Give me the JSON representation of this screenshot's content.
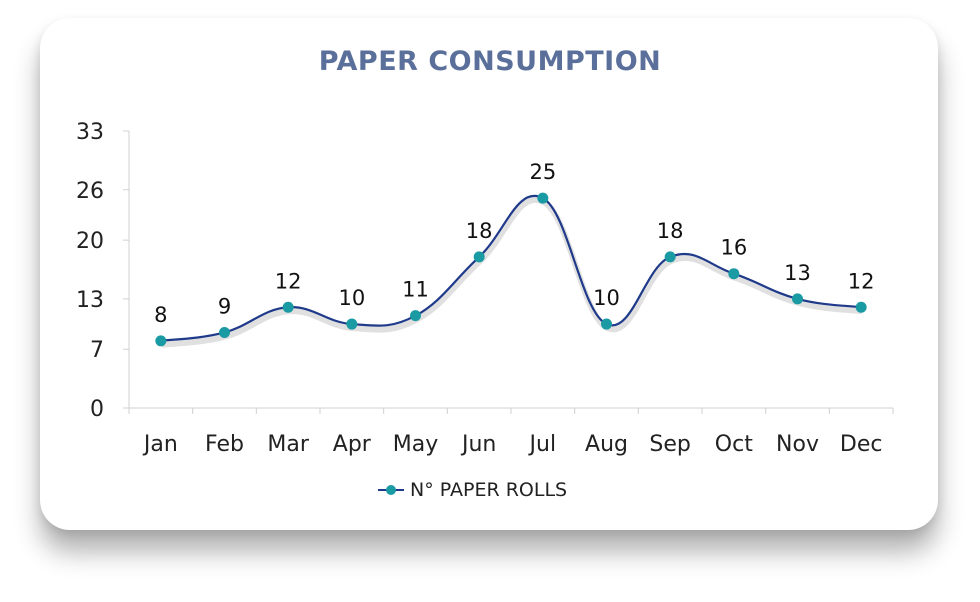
{
  "chart_data": {
    "type": "line",
    "title": "PAPER CONSUMPTION",
    "categories": [
      "Jan",
      "Feb",
      "Mar",
      "Apr",
      "May",
      "Jun",
      "Jul",
      "Aug",
      "Sep",
      "Oct",
      "Nov",
      "Dec"
    ],
    "series": [
      {
        "name": "N° PAPER ROLLS",
        "values": [
          8,
          9,
          12,
          10,
          11,
          18,
          25,
          10,
          18,
          16,
          13,
          12
        ]
      }
    ],
    "y_ticks": [
      "0",
      "7",
      "13",
      "20",
      "26",
      "33"
    ],
    "ylim": [
      0,
      33
    ],
    "xlabel": "",
    "ylabel": "",
    "grid": false,
    "legend_position": "bottom",
    "colors": {
      "line": "#1f3a8a",
      "marker": "#1a9aa3",
      "title": "#5a6f9a"
    }
  }
}
